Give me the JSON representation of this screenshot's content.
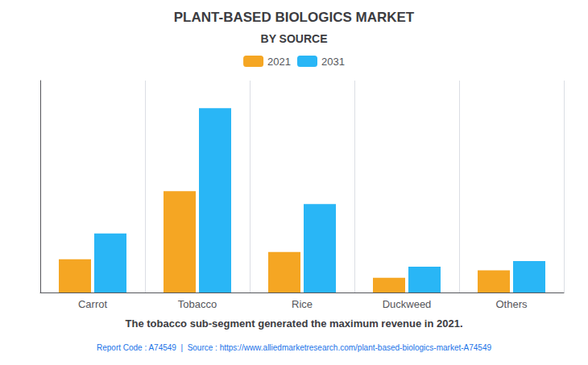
{
  "chart_data": {
    "type": "bar",
    "title": "PLANT-BASED BIOLOGICS MARKET",
    "subtitle": "BY SOURCE",
    "categories": [
      "Carrot",
      "Tobacco",
      "Rice",
      "Duckweed",
      "Others"
    ],
    "series": [
      {
        "name": "2021",
        "color": "#F5A623",
        "values": [
          18,
          55,
          22,
          8,
          12
        ]
      },
      {
        "name": "2031",
        "color": "#29B6F6",
        "values": [
          32,
          100,
          48,
          14,
          17
        ]
      }
    ],
    "ylim": [
      0,
      115
    ],
    "grid": true,
    "legend": "top",
    "tick_labels": "x",
    "footnote": "The tobacco sub-segment generated the maximum revenue in 2021.",
    "source": "Report Code : A74549  |  Source : https://www.alliedmarketresearch.com/plant-based-biologics-market-A74549"
  }
}
